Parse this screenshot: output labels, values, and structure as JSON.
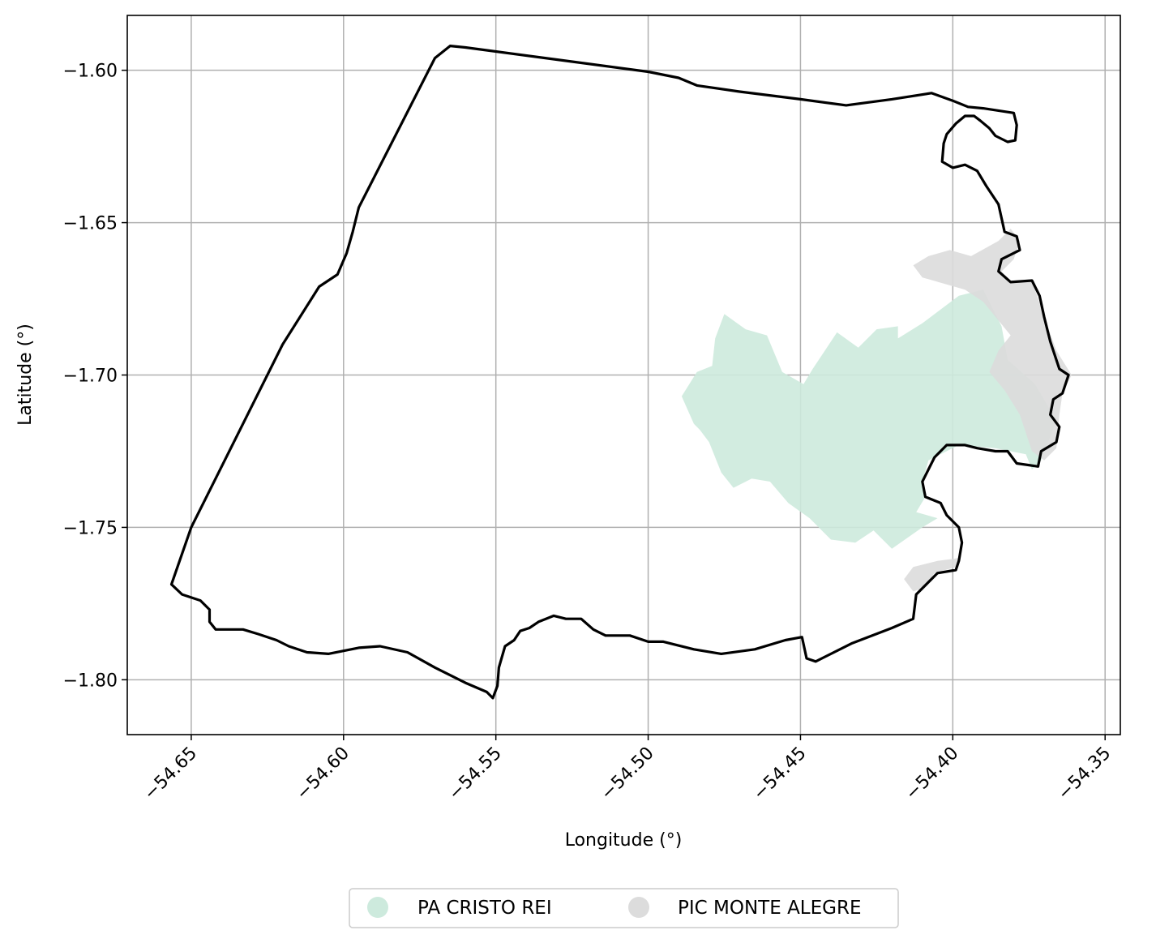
{
  "axes": {
    "xlabel": "Longitude (°)",
    "ylabel": "Latitude (°)",
    "xlim": [
      -54.671,
      -54.345
    ],
    "ylim": [
      -1.818,
      -1.582
    ],
    "x_ticks": [
      {
        "value": -54.65,
        "label": "−54.65"
      },
      {
        "value": -54.6,
        "label": "−54.60"
      },
      {
        "value": -54.55,
        "label": "−54.55"
      },
      {
        "value": -54.5,
        "label": "−54.50"
      },
      {
        "value": -54.45,
        "label": "−54.45"
      },
      {
        "value": -54.4,
        "label": "−54.40"
      },
      {
        "value": -54.35,
        "label": "−54.35"
      }
    ],
    "y_ticks": [
      {
        "value": -1.6,
        "label": "−1.60"
      },
      {
        "value": -1.65,
        "label": "−1.65"
      },
      {
        "value": -1.7,
        "label": "−1.70"
      },
      {
        "value": -1.75,
        "label": "−1.75"
      },
      {
        "value": -1.8,
        "label": "−1.80"
      }
    ],
    "grid": true
  },
  "legend": {
    "placement": "bottom-center",
    "items": [
      {
        "label": "PA CRISTO REI",
        "color": "#cdeadd"
      },
      {
        "label": "PIC MONTE ALEGRE",
        "color": "#dcdcdc"
      }
    ]
  },
  "layers": {
    "boundary": {
      "stroke": "#000000",
      "coords": [
        [
          -54.6565,
          -1.7687
        ],
        [
          -54.65,
          -1.75
        ],
        [
          -54.62,
          -1.69
        ],
        [
          -54.608,
          -1.671
        ],
        [
          -54.602,
          -1.667
        ],
        [
          -54.599,
          -1.66
        ],
        [
          -54.597,
          -1.653
        ],
        [
          -54.595,
          -1.645
        ],
        [
          -54.57,
          -1.596
        ],
        [
          -54.565,
          -1.592
        ],
        [
          -54.56,
          -1.5925
        ],
        [
          -54.53,
          -1.5965
        ],
        [
          -54.5,
          -1.6005
        ],
        [
          -54.49,
          -1.6025
        ],
        [
          -54.484,
          -1.605
        ],
        [
          -54.47,
          -1.607
        ],
        [
          -54.45,
          -1.6095
        ],
        [
          -54.435,
          -1.6115
        ],
        [
          -54.42,
          -1.6095
        ],
        [
          -54.407,
          -1.6075
        ],
        [
          -54.4,
          -1.61
        ],
        [
          -54.395,
          -1.612
        ],
        [
          -54.39,
          -1.6125
        ],
        [
          -54.38,
          -1.614
        ],
        [
          -54.379,
          -1.618
        ],
        [
          -54.3795,
          -1.623
        ],
        [
          -54.382,
          -1.6235
        ],
        [
          -54.386,
          -1.6215
        ],
        [
          -54.388,
          -1.619
        ],
        [
          -54.391,
          -1.6165
        ],
        [
          -54.393,
          -1.615
        ],
        [
          -54.396,
          -1.615
        ],
        [
          -54.399,
          -1.6175
        ],
        [
          -54.402,
          -1.621
        ],
        [
          -54.403,
          -1.624
        ],
        [
          -54.4035,
          -1.63
        ],
        [
          -54.4,
          -1.632
        ],
        [
          -54.396,
          -1.631
        ],
        [
          -54.392,
          -1.633
        ],
        [
          -54.389,
          -1.638
        ],
        [
          -54.385,
          -1.644
        ],
        [
          -54.383,
          -1.653
        ],
        [
          -54.379,
          -1.6545
        ],
        [
          -54.378,
          -1.659
        ],
        [
          -54.384,
          -1.662
        ],
        [
          -54.385,
          -1.666
        ],
        [
          -54.381,
          -1.6695
        ],
        [
          -54.374,
          -1.669
        ],
        [
          -54.3715,
          -1.674
        ],
        [
          -54.37,
          -1.681
        ],
        [
          -54.368,
          -1.689
        ],
        [
          -54.365,
          -1.698
        ],
        [
          -54.362,
          -1.7
        ],
        [
          -54.364,
          -1.706
        ],
        [
          -54.367,
          -1.708
        ],
        [
          -54.368,
          -1.713
        ],
        [
          -54.365,
          -1.717
        ],
        [
          -54.366,
          -1.722
        ],
        [
          -54.371,
          -1.725
        ],
        [
          -54.372,
          -1.73
        ],
        [
          -54.379,
          -1.729
        ],
        [
          -54.382,
          -1.725
        ],
        [
          -54.386,
          -1.725
        ],
        [
          -54.392,
          -1.724
        ],
        [
          -54.396,
          -1.723
        ],
        [
          -54.402,
          -1.723
        ],
        [
          -54.406,
          -1.727
        ],
        [
          -54.4085,
          -1.732
        ],
        [
          -54.41,
          -1.735
        ],
        [
          -54.409,
          -1.74
        ],
        [
          -54.404,
          -1.742
        ],
        [
          -54.402,
          -1.746
        ],
        [
          -54.398,
          -1.75
        ],
        [
          -54.397,
          -1.755
        ],
        [
          -54.398,
          -1.761
        ],
        [
          -54.399,
          -1.764
        ],
        [
          -54.405,
          -1.765
        ],
        [
          -54.412,
          -1.772
        ],
        [
          -54.413,
          -1.78
        ],
        [
          -54.42,
          -1.783
        ],
        [
          -54.433,
          -1.788
        ],
        [
          -54.445,
          -1.794
        ],
        [
          -54.448,
          -1.793
        ],
        [
          -54.4495,
          -1.786
        ],
        [
          -54.455,
          -1.787
        ],
        [
          -54.465,
          -1.79
        ],
        [
          -54.476,
          -1.7915
        ],
        [
          -54.485,
          -1.79
        ],
        [
          -54.495,
          -1.7875
        ],
        [
          -54.5,
          -1.7875
        ],
        [
          -54.506,
          -1.7855
        ],
        [
          -54.514,
          -1.7855
        ],
        [
          -54.518,
          -1.7835
        ],
        [
          -54.522,
          -1.78
        ],
        [
          -54.527,
          -1.78
        ],
        [
          -54.531,
          -1.779
        ],
        [
          -54.536,
          -1.781
        ],
        [
          -54.539,
          -1.783
        ],
        [
          -54.542,
          -1.784
        ],
        [
          -54.544,
          -1.787
        ],
        [
          -54.547,
          -1.789
        ],
        [
          -54.549,
          -1.796
        ],
        [
          -54.5495,
          -1.802
        ],
        [
          -54.551,
          -1.806
        ],
        [
          -54.553,
          -1.804
        ],
        [
          -54.56,
          -1.801
        ],
        [
          -54.57,
          -1.796
        ],
        [
          -54.579,
          -1.791
        ],
        [
          -54.588,
          -1.789
        ],
        [
          -54.595,
          -1.7895
        ],
        [
          -54.605,
          -1.7915
        ],
        [
          -54.612,
          -1.791
        ],
        [
          -54.618,
          -1.789
        ],
        [
          -54.622,
          -1.787
        ],
        [
          -54.628,
          -1.785
        ],
        [
          -54.633,
          -1.7835
        ],
        [
          -54.637,
          -1.7835
        ],
        [
          -54.642,
          -1.7835
        ],
        [
          -54.644,
          -1.781
        ],
        [
          -54.644,
          -1.777
        ],
        [
          -54.647,
          -1.774
        ],
        [
          -54.653,
          -1.772
        ],
        [
          -54.6565,
          -1.7687
        ]
      ]
    },
    "polygons": [
      {
        "name": "PA CRISTO REI",
        "color": "#cdeadd",
        "coords": [
          [
            -54.489,
            -1.707
          ],
          [
            -54.484,
            -1.699
          ],
          [
            -54.479,
            -1.697
          ],
          [
            -54.478,
            -1.688
          ],
          [
            -54.475,
            -1.68
          ],
          [
            -54.468,
            -1.685
          ],
          [
            -54.461,
            -1.687
          ],
          [
            -54.456,
            -1.699
          ],
          [
            -54.449,
            -1.703
          ],
          [
            -54.446,
            -1.698
          ],
          [
            -54.438,
            -1.686
          ],
          [
            -54.431,
            -1.691
          ],
          [
            -54.425,
            -1.685
          ],
          [
            -54.418,
            -1.684
          ],
          [
            -54.418,
            -1.688
          ],
          [
            -54.41,
            -1.683
          ],
          [
            -54.398,
            -1.674
          ],
          [
            -54.39,
            -1.672
          ],
          [
            -54.384,
            -1.684
          ],
          [
            -54.382,
            -1.695
          ],
          [
            -54.373,
            -1.703
          ],
          [
            -54.366,
            -1.715
          ],
          [
            -54.371,
            -1.728
          ],
          [
            -54.374,
            -1.731
          ],
          [
            -54.376,
            -1.726
          ],
          [
            -54.386,
            -1.724
          ],
          [
            -54.398,
            -1.723
          ],
          [
            -54.408,
            -1.728
          ],
          [
            -54.41,
            -1.735
          ],
          [
            -54.409,
            -1.74
          ],
          [
            -54.412,
            -1.745
          ],
          [
            -54.405,
            -1.747
          ],
          [
            -54.41,
            -1.75
          ],
          [
            -54.42,
            -1.757
          ],
          [
            -54.426,
            -1.751
          ],
          [
            -54.432,
            -1.755
          ],
          [
            -54.44,
            -1.754
          ],
          [
            -54.447,
            -1.747
          ],
          [
            -54.454,
            -1.742
          ],
          [
            -54.46,
            -1.735
          ],
          [
            -54.466,
            -1.734
          ],
          [
            -54.472,
            -1.737
          ],
          [
            -54.476,
            -1.732
          ],
          [
            -54.48,
            -1.722
          ],
          [
            -54.483,
            -1.718
          ],
          [
            -54.485,
            -1.716
          ],
          [
            -54.489,
            -1.707
          ]
        ]
      },
      {
        "name": "PIC MONTE ALEGRE",
        "color": "#dcdcdc",
        "coords": [
          [
            -54.413,
            -1.664
          ],
          [
            -54.408,
            -1.661
          ],
          [
            -54.401,
            -1.659
          ],
          [
            -54.394,
            -1.661
          ],
          [
            -54.385,
            -1.656
          ],
          [
            -54.381,
            -1.652
          ],
          [
            -54.378,
            -1.656
          ],
          [
            -54.38,
            -1.662
          ],
          [
            -54.384,
            -1.666
          ],
          [
            -54.381,
            -1.669
          ],
          [
            -54.374,
            -1.669
          ],
          [
            -54.37,
            -1.681
          ],
          [
            -54.366,
            -1.692
          ],
          [
            -54.361,
            -1.7
          ],
          [
            -54.364,
            -1.706
          ],
          [
            -54.365,
            -1.713
          ],
          [
            -54.366,
            -1.724
          ],
          [
            -54.37,
            -1.728
          ],
          [
            -54.374,
            -1.725
          ],
          [
            -54.378,
            -1.713
          ],
          [
            -54.383,
            -1.705
          ],
          [
            -54.388,
            -1.699
          ],
          [
            -54.385,
            -1.692
          ],
          [
            -54.381,
            -1.687
          ],
          [
            -54.39,
            -1.676
          ],
          [
            -54.396,
            -1.672
          ],
          [
            -54.403,
            -1.67
          ],
          [
            -54.41,
            -1.668
          ],
          [
            -54.413,
            -1.664
          ]
        ]
      },
      {
        "name": "PIC MONTE ALEGRE",
        "color": "#dcdcdc",
        "coords": [
          [
            -54.416,
            -1.767
          ],
          [
            -54.413,
            -1.771
          ],
          [
            -54.41,
            -1.77
          ],
          [
            -54.406,
            -1.765
          ],
          [
            -54.399,
            -1.763
          ],
          [
            -54.3975,
            -1.76
          ],
          [
            -54.405,
            -1.761
          ],
          [
            -54.413,
            -1.763
          ],
          [
            -54.416,
            -1.767
          ]
        ]
      }
    ]
  }
}
